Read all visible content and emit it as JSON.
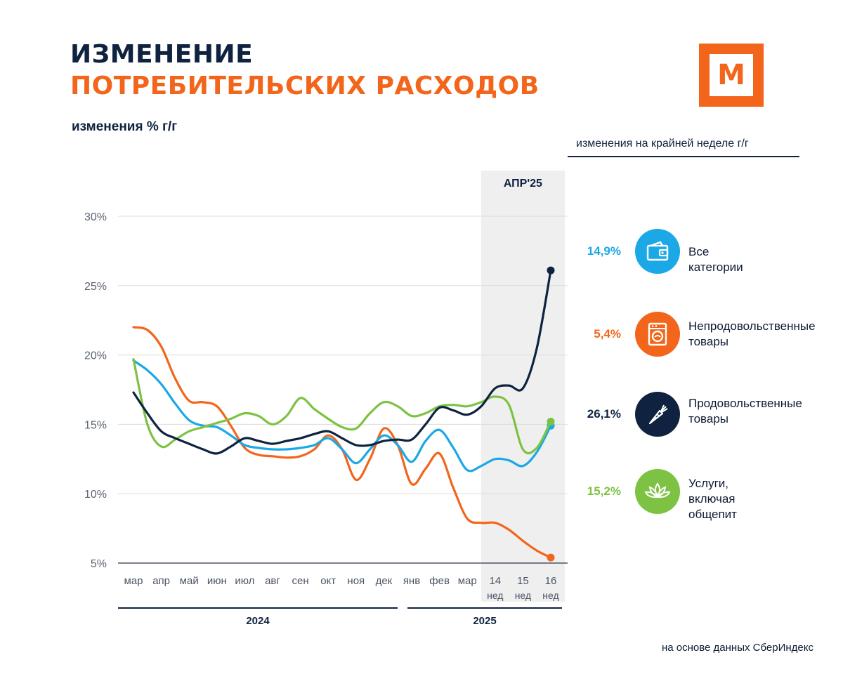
{
  "header": {
    "title_line1": "ИЗМЕНЕНИЕ",
    "title_line2": "ПОТРЕБИТЕЛЬСКИХ РАСХОДОВ",
    "subtitle": "изменения % г/г",
    "logo_letter": "М"
  },
  "legend": {
    "heading": "изменения на крайней неделе г/г",
    "items": [
      {
        "value": "14,9%",
        "line1": "Все категории",
        "line2": "",
        "color": "#1aa8e6",
        "icon": "wallet-icon"
      },
      {
        "value": "5,4%",
        "line1": "Непродовольственные",
        "line2": "товары",
        "color": "#f2651b",
        "icon": "washing-machine-icon"
      },
      {
        "value": "26,1%",
        "line1": "Продовольственные",
        "line2": "товары",
        "color": "#0f2340",
        "icon": "carrot-icon"
      },
      {
        "value": "15,2%",
        "line1": "Услуги,",
        "line2": "включая общепит",
        "color": "#7dc242",
        "icon": "lotus-icon"
      }
    ]
  },
  "source": "на основе данных СберИндекс",
  "chart_data": {
    "type": "line",
    "title": "ИЗМЕНЕНИЕ ПОТРЕБИТЕЛЬСКИХ РАСХОДОВ",
    "ylabel": "изменения % г/г",
    "ylim": [
      5,
      30
    ],
    "yticks": [
      5,
      10,
      15,
      20,
      25,
      30
    ],
    "ytick_labels": [
      "5%",
      "10%",
      "15%",
      "20%",
      "25%",
      "30%"
    ],
    "highlight": {
      "label": "АПР'25",
      "from": 13,
      "to": 15
    },
    "categories": [
      {
        "top": "мар",
        "bottom": ""
      },
      {
        "top": "апр",
        "bottom": ""
      },
      {
        "top": "май",
        "bottom": ""
      },
      {
        "top": "июн",
        "bottom": ""
      },
      {
        "top": "июл",
        "bottom": ""
      },
      {
        "top": "авг",
        "bottom": ""
      },
      {
        "top": "сен",
        "bottom": ""
      },
      {
        "top": "окт",
        "bottom": ""
      },
      {
        "top": "ноя",
        "bottom": ""
      },
      {
        "top": "дек",
        "bottom": ""
      },
      {
        "top": "янв",
        "bottom": ""
      },
      {
        "top": "фев",
        "bottom": ""
      },
      {
        "top": "мар",
        "bottom": ""
      },
      {
        "top": "14",
        "bottom": "нед"
      },
      {
        "top": "15",
        "bottom": "нед"
      },
      {
        "top": "16",
        "bottom": "нед"
      }
    ],
    "year_groups": [
      {
        "label": "2024",
        "from": 0,
        "to": 9
      },
      {
        "label": "2025",
        "from": 10,
        "to": 15
      }
    ],
    "series": [
      {
        "name": "Все категории",
        "color": "#1aa8e6",
        "x": [
          0,
          0.5,
          1,
          1.5,
          2,
          2.5,
          3,
          3.5,
          4,
          4.5,
          5,
          5.5,
          6,
          6.5,
          7,
          7.5,
          8,
          8.5,
          9,
          9.5,
          10,
          10.5,
          11,
          11.5,
          12,
          12.5,
          13,
          13.5,
          14,
          14.5,
          15
        ],
        "values": [
          19.6,
          18.9,
          17.9,
          16.5,
          15.3,
          14.9,
          14.8,
          14.2,
          13.5,
          13.3,
          13.2,
          13.2,
          13.3,
          13.5,
          14.0,
          13.2,
          12.2,
          13.2,
          14.2,
          13.5,
          12.3,
          13.8,
          14.6,
          13.3,
          11.7,
          12.0,
          12.5,
          12.4,
          12.0,
          13.0,
          14.9
        ]
      },
      {
        "name": "Непродовольственные товары",
        "color": "#f2651b",
        "x": [
          0,
          0.5,
          1,
          1.5,
          2,
          2.5,
          3,
          3.5,
          4,
          4.5,
          5,
          5.5,
          6,
          6.5,
          7,
          7.5,
          8,
          8.5,
          9,
          9.5,
          10,
          10.5,
          11,
          11.5,
          12,
          12.5,
          13,
          13.5,
          14,
          14.5,
          15
        ],
        "values": [
          22.0,
          21.8,
          20.6,
          18.3,
          16.7,
          16.6,
          16.3,
          14.9,
          13.3,
          12.8,
          12.7,
          12.6,
          12.7,
          13.2,
          14.2,
          13.2,
          11.0,
          12.5,
          14.7,
          13.5,
          10.7,
          11.8,
          12.9,
          10.4,
          8.2,
          7.9,
          7.9,
          7.4,
          6.6,
          5.9,
          5.4
        ]
      },
      {
        "name": "Продовольственные товары",
        "color": "#0f2340",
        "x": [
          0,
          0.5,
          1,
          1.5,
          2,
          2.5,
          3,
          3.5,
          4,
          4.5,
          5,
          5.5,
          6,
          6.5,
          7,
          7.5,
          8,
          8.5,
          9,
          9.5,
          10,
          10.5,
          11,
          11.5,
          12,
          12.5,
          13,
          13.5,
          14,
          14.5,
          15
        ],
        "values": [
          17.3,
          15.8,
          14.5,
          14.0,
          13.6,
          13.2,
          12.9,
          13.4,
          14.0,
          13.8,
          13.6,
          13.8,
          14.0,
          14.3,
          14.5,
          14.0,
          13.5,
          13.5,
          13.8,
          13.9,
          13.9,
          15.0,
          16.2,
          16.0,
          15.7,
          16.3,
          17.6,
          17.8,
          17.6,
          20.5,
          26.1
        ]
      },
      {
        "name": "Услуги, включая общепит",
        "color": "#7dc242",
        "x": [
          0,
          0.5,
          1,
          1.5,
          2,
          2.5,
          3,
          3.5,
          4,
          4.5,
          5,
          5.5,
          6,
          6.5,
          7,
          7.5,
          8,
          8.5,
          9,
          9.5,
          10,
          10.5,
          11,
          11.5,
          12,
          12.5,
          13,
          13.5,
          14,
          14.5,
          15
        ],
        "values": [
          19.7,
          15.0,
          13.4,
          13.9,
          14.5,
          14.8,
          15.1,
          15.4,
          15.8,
          15.6,
          15.0,
          15.6,
          16.9,
          16.1,
          15.4,
          14.8,
          14.7,
          15.8,
          16.6,
          16.3,
          15.6,
          15.8,
          16.3,
          16.4,
          16.3,
          16.6,
          17.0,
          16.4,
          13.2,
          13.3,
          15.2
        ]
      }
    ]
  }
}
